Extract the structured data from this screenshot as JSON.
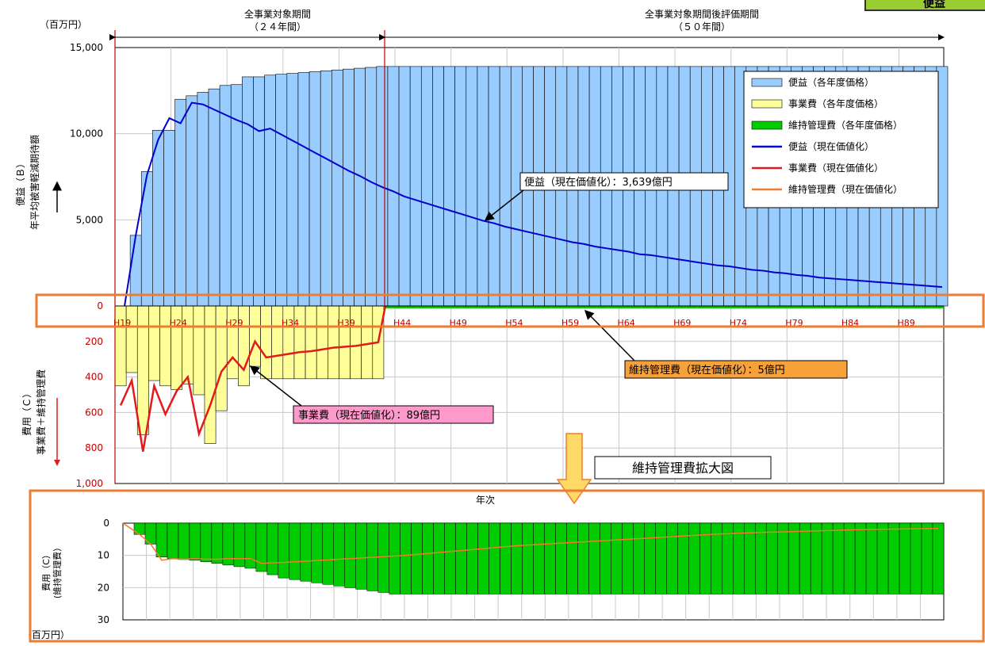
{
  "top_badge": "便益",
  "units": {
    "top": "（百万円）",
    "bottom": "（百万円）"
  },
  "periods": {
    "project": {
      "label": "全事業対象期間",
      "sub": "（２４年間）"
    },
    "evaluation": {
      "label": "全事業対象期間後評価期間",
      "sub": "（５０年間）"
    }
  },
  "axes": {
    "y_benefit_label_1": "便益（Ｂ）",
    "y_benefit_label_2": "年平均被害軽減期待額",
    "y_cost_label_1": "費用（Ｃ）",
    "y_cost_label_2": "事業費＋維持管理費",
    "x_label": "年次",
    "y_zoom_label_1": "費用（C）",
    "y_zoom_label_2": "(維持管理費）"
  },
  "legend": [
    {
      "key": "benefit_bar",
      "label": "便益（各年度価格）",
      "color": "#99ccff",
      "kind": "bar"
    },
    {
      "key": "project_bar",
      "label": "事業費（各年度価格）",
      "color": "#ffff99",
      "kind": "bar"
    },
    {
      "key": "maint_bar",
      "label": "維持管理費（各年度価格）",
      "color": "#00cc00",
      "kind": "bar"
    },
    {
      "key": "benefit_line",
      "label": "便益（現在価値化）",
      "color": "#0000cc",
      "kind": "line"
    },
    {
      "key": "project_line",
      "label": "事業費（現在価値化）",
      "color": "#e31a1c",
      "kind": "line"
    },
    {
      "key": "maint_line",
      "label": "維持管理費（現在価値化）",
      "color": "#ed7d31",
      "kind": "line"
    }
  ],
  "callouts": {
    "benefit": "便益（現在価値化）：3,639億円",
    "project": "事業費（現在価値化）：89億円",
    "maint": "維持管理費（現在価値化）：5億円",
    "zoom_title": "維持管理費拡大図"
  },
  "colors": {
    "benefit_bar": "#99ccff",
    "project_bar": "#ffff99",
    "maint_bar": "#00cc00",
    "benefit_line": "#0000cc",
    "project_line": "#e31a1c",
    "maint_line": "#ed7d31",
    "highlight": "#ed7d31",
    "callout_benefit": "#ffffff",
    "callout_project": "#ff99cc",
    "callout_maint": "#f7a13a"
  },
  "chart_data": [
    {
      "type": "bar",
      "x_start_year": 19,
      "x_tick_labels": [
        "H19",
        "H24",
        "H29",
        "H34",
        "H39",
        "H44",
        "H49",
        "H54",
        "H59",
        "H64",
        "H69",
        "H74",
        "H79",
        "H84",
        "H89"
      ],
      "y_top_ticks": [
        "15,000",
        "10,000",
        "5,000",
        "0"
      ],
      "y_bottom_ticks": [
        "200",
        "400",
        "600",
        "800",
        "1,000"
      ],
      "ylim_benefit": [
        0,
        15000
      ],
      "ylim_cost": [
        0,
        1000
      ],
      "series": [
        {
          "name": "便益（各年度価格）",
          "values": [
            0,
            4100,
            7800,
            10200,
            10200,
            12000,
            12200,
            12400,
            12600,
            12800,
            12850,
            13300,
            13300,
            13400,
            13450,
            13500,
            13550,
            13600,
            13650,
            13700,
            13750,
            13800,
            13850,
            13900,
            13900,
            13900,
            13900,
            13900,
            13900,
            13900,
            13900,
            13900,
            13900,
            13900,
            13900,
            13900,
            13900,
            13900,
            13900,
            13900,
            13900,
            13900,
            13900,
            13900,
            13900,
            13900,
            13900,
            13900,
            13900,
            13900,
            13900,
            13900,
            13900,
            13900,
            13900,
            13900,
            13900,
            13900,
            13900,
            13900,
            13900,
            13900,
            13900,
            13900,
            13900,
            13900,
            13900,
            13900,
            13900,
            13900,
            13900,
            13900,
            13900,
            13900
          ]
        },
        {
          "name": "便益（現在価値化）",
          "values": [
            0,
            4100,
            7600,
            9650,
            10900,
            10600,
            11800,
            11700,
            11400,
            11100,
            10800,
            10550,
            10150,
            10300,
            9950,
            9600,
            9250,
            8900,
            8550,
            8200,
            7850,
            7550,
            7200,
            6900,
            6650,
            6350,
            6150,
            5950,
            5750,
            5550,
            5350,
            5150,
            4950,
            4800,
            4600,
            4450,
            4300,
            4150,
            4000,
            3850,
            3700,
            3600,
            3450,
            3350,
            3250,
            3150,
            3000,
            2950,
            2850,
            2750,
            2650,
            2550,
            2450,
            2350,
            2300,
            2200,
            2100,
            2050,
            1950,
            1900,
            1800,
            1750,
            1650,
            1600,
            1550,
            1500,
            1450,
            1400,
            1350,
            1300,
            1250,
            1200,
            1150,
            1100
          ]
        },
        {
          "name": "事業費（各年度価格）",
          "values": [
            450,
            375,
            725,
            420,
            450,
            470,
            440,
            500,
            775,
            590,
            410,
            450,
            340,
            410,
            410,
            410,
            410,
            410,
            410,
            410,
            410,
            410,
            410,
            410,
            410,
            410,
            410,
            410,
            410,
            410,
            410,
            410,
            410,
            410,
            410,
            410,
            410,
            410,
            410,
            410,
            410,
            410,
            410,
            410,
            410,
            410,
            410,
            410,
            410,
            410,
            410,
            410,
            410,
            410,
            410,
            410,
            410,
            410,
            410,
            410,
            410,
            410,
            410,
            410,
            410,
            410,
            410,
            410,
            410,
            410,
            410,
            410,
            410,
            410
          ]
        },
        {
          "name": "事業費（現在価値化）",
          "values": [
            560,
            420,
            820,
            450,
            610,
            480,
            400,
            720,
            560,
            370,
            290,
            360,
            200,
            290,
            280,
            270,
            260,
            255,
            245,
            235,
            230,
            225,
            215,
            205,
            195,
            185,
            175,
            165,
            155,
            145,
            135,
            125,
            115,
            105,
            95,
            85,
            75,
            65,
            55,
            45,
            35,
            25,
            15,
            5,
            0,
            0,
            0,
            0,
            0,
            0,
            0,
            0,
            0,
            0,
            0,
            0,
            0,
            0,
            0,
            0,
            0,
            0,
            0,
            0,
            0,
            0,
            0,
            0,
            0,
            0,
            0,
            0,
            0,
            0
          ]
        }
      ]
    },
    {
      "type": "bar",
      "x_start_year": 19,
      "ylim": [
        0,
        30
      ],
      "y_ticks": [
        "0",
        "10",
        "20",
        "30"
      ],
      "series": [
        {
          "name": "維持管理費（各年度価格）",
          "values": [
            0,
            3.5,
            6.5,
            10.5,
            11,
            11.3,
            11.5,
            12,
            12.5,
            13,
            13.5,
            14,
            15,
            16,
            17,
            17.5,
            18,
            18.5,
            19,
            19.5,
            20,
            20.5,
            21,
            21.5,
            22,
            22,
            22,
            22,
            22,
            22,
            22,
            22,
            22,
            22,
            22,
            22,
            22,
            22,
            22,
            22,
            22,
            22,
            22,
            22,
            22,
            22,
            22,
            22,
            22,
            22,
            22,
            22,
            22,
            22,
            22,
            22,
            22,
            22,
            22,
            22,
            22,
            22,
            22,
            22,
            22,
            22,
            22,
            22,
            22,
            22,
            22,
            22,
            22,
            22
          ]
        },
        {
          "name": "維持管理費（現在価値化）",
          "values": [
            0,
            3.5,
            6.5,
            11.5,
            11,
            11.2,
            11,
            11.2,
            11.2,
            11,
            11,
            11,
            12.5,
            12.3,
            12.2,
            12,
            11.8,
            11.6,
            11.4,
            11.2,
            11,
            10.8,
            10.6,
            10.4,
            10.2,
            10,
            9.7,
            9.4,
            9.1,
            8.8,
            8.5,
            8.2,
            7.9,
            7.6,
            7.3,
            7,
            6.8,
            6.6,
            6.4,
            6.2,
            6,
            5.8,
            5.6,
            5.4,
            5.2,
            5,
            4.8,
            4.6,
            4.4,
            4.2,
            4.0,
            3.8,
            3.6,
            3.4,
            3.3,
            3.1,
            3.0,
            2.9,
            2.8,
            2.7,
            2.6,
            2.5,
            2.4,
            2.3,
            2.2,
            2.1,
            2.0,
            1.95,
            1.9,
            1.85,
            1.8,
            1.75,
            1.7,
            1.65
          ]
        }
      ]
    }
  ]
}
